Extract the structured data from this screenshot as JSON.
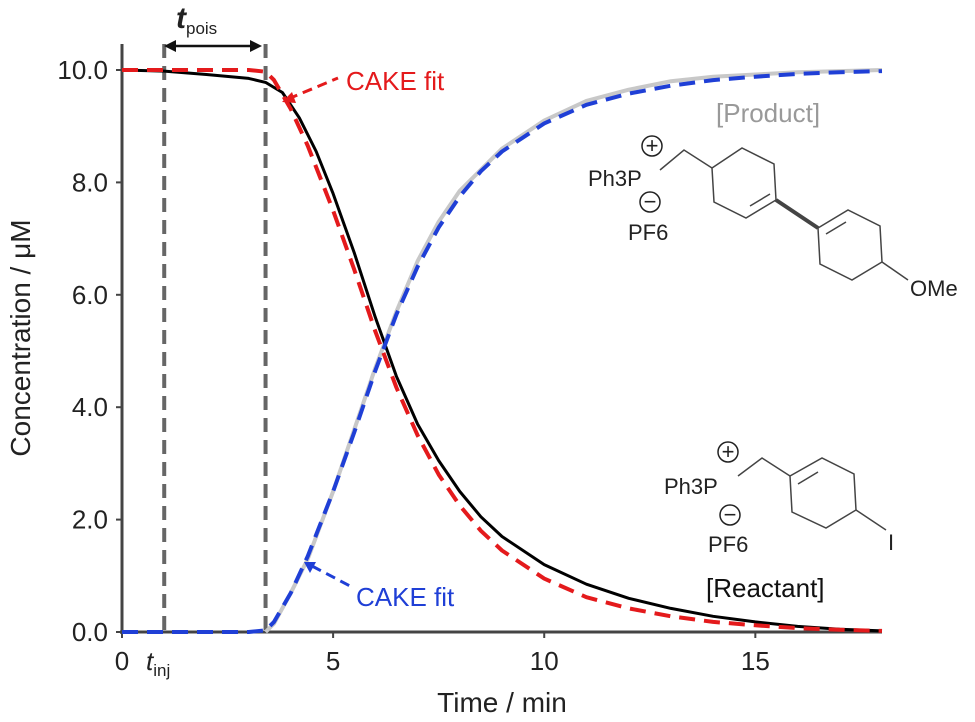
{
  "chart_data": {
    "type": "line",
    "xlabel": "Time / min",
    "ylabel": "Concentration / μM",
    "xlim": [
      0,
      18
    ],
    "ylim": [
      0,
      10
    ],
    "x_ticks": [
      0,
      5,
      10,
      15
    ],
    "x_tick_labels": [
      "0",
      "5",
      "10",
      "15"
    ],
    "y_ticks": [
      0,
      2,
      4,
      6,
      8,
      10
    ],
    "y_tick_labels": [
      "0.0",
      "2.0",
      "4.0",
      "6.0",
      "8.0",
      "10.0"
    ],
    "grid": false,
    "colors": {
      "reactant_data": "#000000",
      "product_data": "#c8c8c8",
      "reactant_fit": "#e41a1c",
      "product_fit": "#1f3fd6",
      "markers": "#666666",
      "product_label": "#999999"
    },
    "vertical_markers": [
      {
        "x": 1.0,
        "label_main": "t",
        "label_sub": "inj"
      },
      {
        "x": 3.4
      }
    ],
    "t_pois": {
      "label_main": "t",
      "label_sub": "pois",
      "from": 1.0,
      "to": 3.4
    },
    "series": [
      {
        "name": "[Reactant]",
        "style": "solid",
        "x": [
          0,
          1,
          2,
          3,
          3.4,
          3.8,
          4.2,
          4.6,
          5.0,
          5.5,
          6.0,
          6.5,
          7.0,
          7.5,
          8.0,
          8.5,
          9.0,
          10.0,
          11.0,
          12.0,
          13.0,
          14.0,
          15.0,
          16.0,
          17.0,
          18.0
        ],
        "y": [
          10.0,
          9.98,
          9.92,
          9.85,
          9.78,
          9.6,
          9.15,
          8.55,
          7.8,
          6.75,
          5.6,
          4.55,
          3.7,
          3.05,
          2.5,
          2.05,
          1.7,
          1.2,
          0.85,
          0.6,
          0.42,
          0.28,
          0.18,
          0.1,
          0.05,
          0.02
        ]
      },
      {
        "name": "[Product]",
        "style": "solid",
        "x": [
          3.4,
          3.6,
          4.0,
          4.4,
          5.0,
          5.5,
          6.0,
          6.5,
          7.0,
          7.5,
          8.0,
          9.0,
          10.0,
          11.0,
          12.0,
          13.0,
          14.0,
          15.0,
          16.0,
          17.0,
          18.0
        ],
        "y": [
          0.0,
          0.15,
          0.7,
          1.3,
          2.5,
          3.6,
          4.7,
          5.7,
          6.6,
          7.3,
          7.85,
          8.6,
          9.1,
          9.45,
          9.65,
          9.8,
          9.88,
          9.92,
          9.96,
          9.98,
          10.0
        ]
      },
      {
        "name": "CAKE fit",
        "style": "dashed",
        "x": [
          0,
          1,
          2,
          3,
          3.4,
          3.6,
          4.0,
          4.4,
          5.0,
          5.5,
          6.0,
          6.5,
          7.0,
          7.5,
          8.0,
          8.5,
          9.0,
          10.0,
          11.0,
          12.0,
          13.0,
          14.0,
          15.0,
          16.0,
          17.0,
          18.0
        ],
        "y": [
          10.0,
          10.0,
          10.0,
          10.0,
          9.97,
          9.82,
          9.3,
          8.65,
          7.5,
          6.45,
          5.35,
          4.35,
          3.5,
          2.8,
          2.25,
          1.8,
          1.45,
          0.95,
          0.62,
          0.42,
          0.28,
          0.18,
          0.12,
          0.07,
          0.04,
          0.02
        ]
      },
      {
        "name": "CAKE fit",
        "style": "dashed",
        "x": [
          0,
          1,
          2,
          3,
          3.4,
          3.6,
          4.0,
          4.4,
          5.0,
          5.5,
          6.0,
          6.5,
          7.0,
          7.5,
          8.0,
          8.5,
          9.0,
          10.0,
          11.0,
          12.0,
          13.0,
          14.0,
          15.0,
          16.0,
          17.0,
          18.0
        ],
        "y": [
          0,
          0,
          0,
          0,
          0.03,
          0.18,
          0.7,
          1.35,
          2.5,
          3.55,
          4.65,
          5.65,
          6.5,
          7.2,
          7.75,
          8.2,
          8.55,
          9.05,
          9.38,
          9.58,
          9.72,
          9.82,
          9.88,
          9.93,
          9.96,
          9.98
        ]
      }
    ],
    "annotations": [
      {
        "text": "CAKE fit",
        "color": "#e41a1c"
      },
      {
        "text": "CAKE fit",
        "color": "#1f3fd6"
      },
      {
        "text": "[Product]",
        "color": "#999999"
      },
      {
        "text": "[Reactant]",
        "color": "#000000"
      }
    ]
  },
  "structures": {
    "product": {
      "phosphonium": "Ph3P",
      "counterion": "PF6",
      "substituent": "OMe",
      "plus_symbol": "+",
      "minus_symbol": "−"
    },
    "reactant": {
      "phosphonium": "Ph3P",
      "counterion": "PF6",
      "substituent": "I",
      "plus_symbol": "+",
      "minus_symbol": "−"
    }
  }
}
